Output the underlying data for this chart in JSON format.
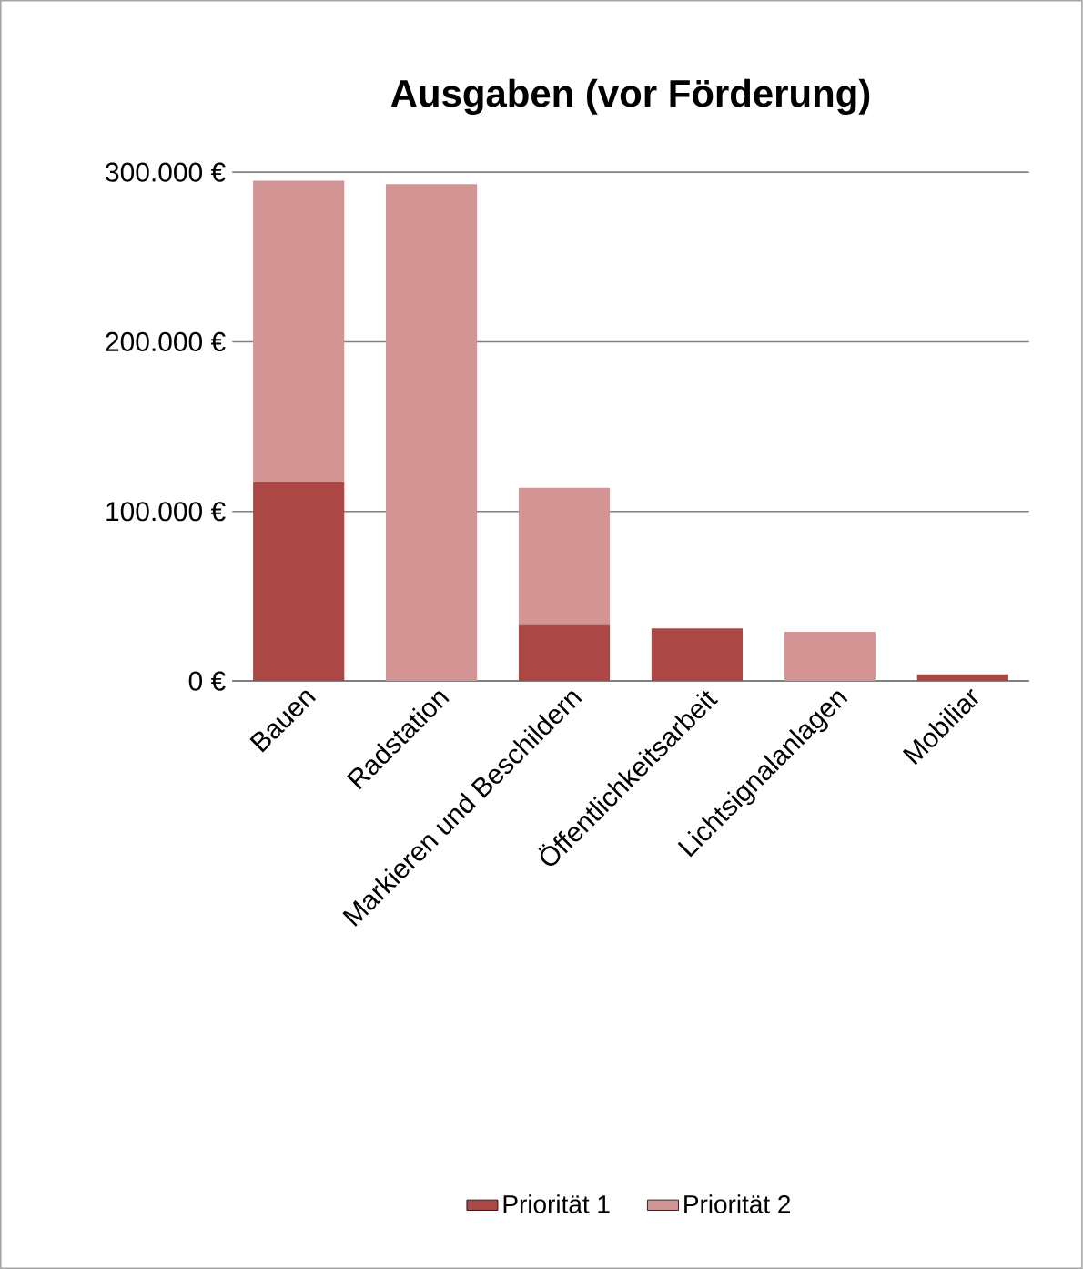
{
  "chart_data": {
    "type": "bar",
    "title": "Ausgaben (vor Förderung)",
    "categories": [
      "Bauen",
      "Radstation",
      "Markieren und Beschildern",
      "Öffentlichkeitsarbeit",
      "Lichtsignalanlagen",
      "Mobiliar"
    ],
    "stacked": true,
    "series": [
      {
        "name": "Priorität 1",
        "color": "#ab4745",
        "values": [
          117000,
          0,
          33000,
          31000,
          0,
          4000
        ]
      },
      {
        "name": "Priorität 2",
        "color": "#d39594",
        "values": [
          178000,
          293000,
          81000,
          0,
          29000,
          0
        ]
      }
    ],
    "ylim": [
      0,
      300000
    ],
    "yticks": [
      {
        "value": 0,
        "label": "0 €"
      },
      {
        "value": 100000,
        "label": "100.000 €"
      },
      {
        "value": 200000,
        "label": "200.000 €"
      },
      {
        "value": 300000,
        "label": "300.000 €"
      }
    ],
    "grid": "y",
    "legend": "bottom"
  }
}
